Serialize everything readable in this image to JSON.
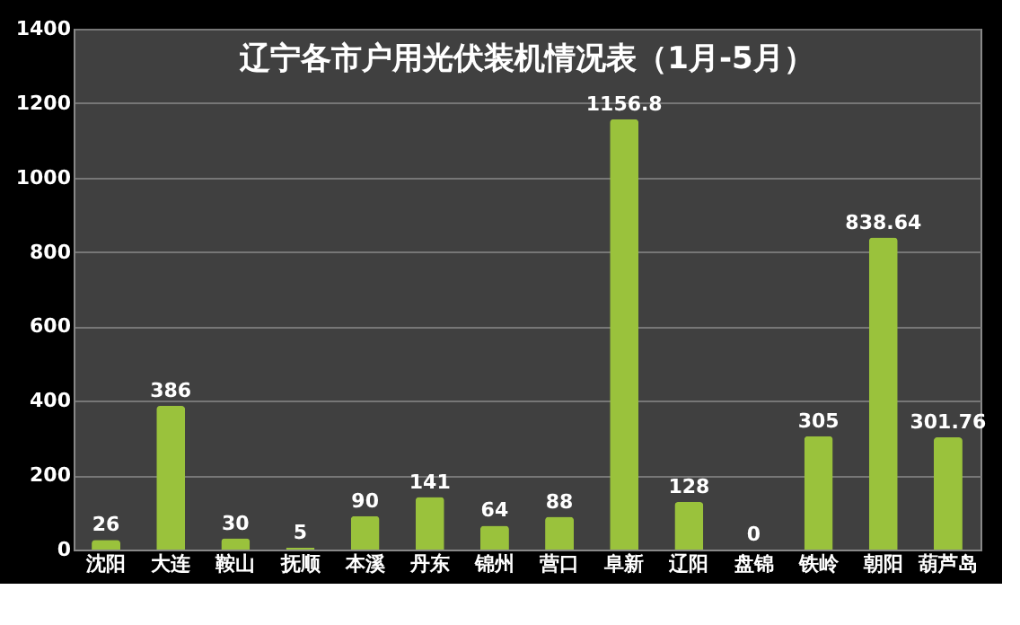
{
  "chart_data": {
    "type": "bar",
    "title": "辽宁各市户用光伏装机情况表（1月-5月）",
    "categories": [
      "沈阳",
      "大连",
      "鞍山",
      "抚顺",
      "本溪",
      "丹东",
      "锦州",
      "营口",
      "阜新",
      "辽阳",
      "盘锦",
      "铁岭",
      "朝阳",
      "葫芦岛"
    ],
    "values": [
      26,
      386,
      30,
      5,
      90,
      141,
      64,
      88,
      1156.8,
      128,
      0,
      305,
      838.64,
      301.76
    ],
    "color": "#9ac23c",
    "ylim": [
      0,
      1400
    ],
    "yticks": [
      0,
      200,
      400,
      600,
      800,
      1000,
      1200,
      1400
    ],
    "grid": "y",
    "data_labels": true
  }
}
